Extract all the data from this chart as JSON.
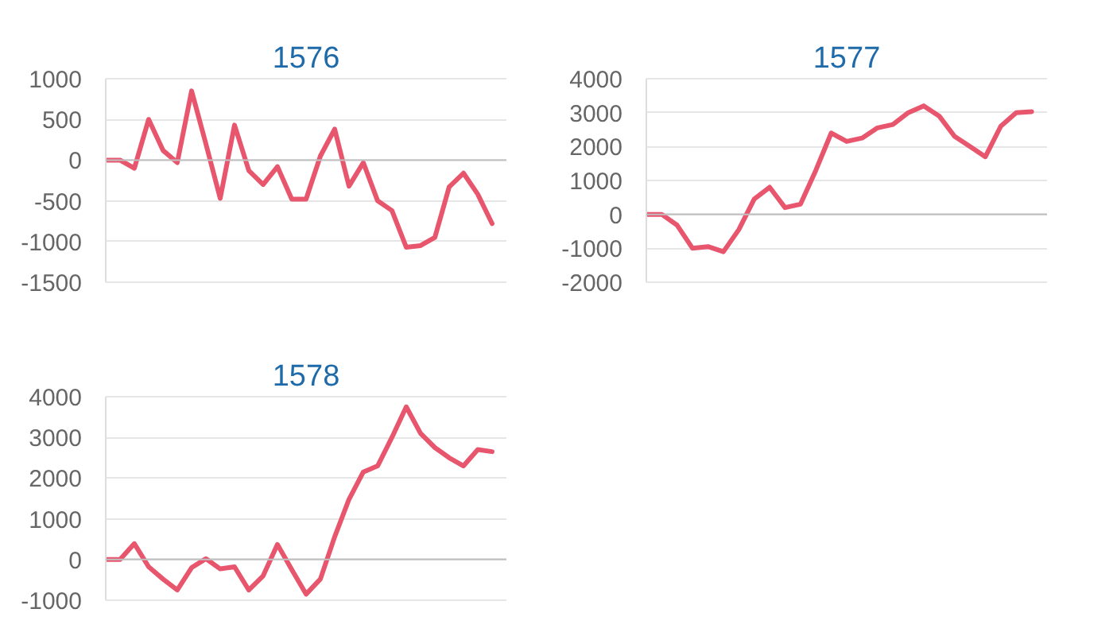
{
  "chart_data": [
    {
      "type": "line",
      "title": "1576",
      "categories": [
        null,
        null,
        null,
        null,
        null,
        null,
        null,
        null,
        null,
        null,
        null,
        null,
        null,
        null,
        null,
        null,
        null,
        null,
        null,
        null,
        null,
        null,
        null,
        null,
        null,
        null,
        null,
        null
      ],
      "series": [
        {
          "color": "#e8566e",
          "values": [
            0,
            0,
            -100,
            500,
            120,
            -30,
            850,
            200,
            -470,
            430,
            -130,
            -300,
            -80,
            -480,
            -480,
            50,
            380,
            -320,
            -30,
            -500,
            -620,
            -1070,
            -1050,
            -950,
            -330,
            -160,
            -420,
            -780
          ]
        }
      ],
      "ylim": [
        -1500,
        1000
      ],
      "yticks": [
        -1500,
        -1000,
        -500,
        0,
        500,
        1000
      ],
      "grid": "y",
      "tick_labels": "y",
      "marker": "none",
      "line_style": "solid",
      "ref_lines": [
        {
          "axis": "y",
          "value": 0,
          "color": "#bfbfbf"
        }
      ]
    },
    {
      "type": "line",
      "title": "1577",
      "categories": [
        null,
        null,
        null,
        null,
        null,
        null,
        null,
        null,
        null,
        null,
        null,
        null,
        null,
        null,
        null,
        null,
        null,
        null,
        null,
        null,
        null,
        null,
        null,
        null,
        null,
        null
      ],
      "series": [
        {
          "color": "#e8566e",
          "values": [
            0,
            0,
            -320,
            -1000,
            -950,
            -1100,
            -450,
            450,
            800,
            200,
            300,
            1300,
            2400,
            2150,
            2250,
            2550,
            2650,
            3000,
            3200,
            2900,
            2300,
            2000,
            1700,
            2600,
            3000,
            3030
          ]
        }
      ],
      "ylim": [
        -2000,
        4000
      ],
      "yticks": [
        -2000,
        -1000,
        0,
        1000,
        2000,
        3000,
        4000
      ],
      "grid": "y",
      "tick_labels": "y",
      "marker": "none",
      "line_style": "solid",
      "ref_lines": [
        {
          "axis": "y",
          "value": 0,
          "color": "#bfbfbf"
        }
      ]
    },
    {
      "type": "line",
      "title": "1578",
      "categories": [
        null,
        null,
        null,
        null,
        null,
        null,
        null,
        null,
        null,
        null,
        null,
        null,
        null,
        null,
        null,
        null,
        null,
        null,
        null,
        null,
        null,
        null,
        null,
        null,
        null,
        null,
        null,
        null
      ],
      "series": [
        {
          "color": "#e8566e",
          "values": [
            0,
            0,
            390,
            -180,
            -480,
            -750,
            -200,
            20,
            -230,
            -180,
            -750,
            -400,
            370,
            -250,
            -850,
            -480,
            560,
            1480,
            2150,
            2300,
            3000,
            3750,
            3100,
            2750,
            2500,
            2300,
            2700,
            2650
          ]
        }
      ],
      "ylim": [
        -1000,
        4000
      ],
      "yticks": [
        -1000,
        0,
        1000,
        2000,
        3000,
        4000
      ],
      "grid": "y",
      "tick_labels": "y",
      "marker": "none",
      "line_style": "solid",
      "ref_lines": [
        {
          "axis": "y",
          "value": 0,
          "color": "#bfbfbf"
        }
      ]
    }
  ]
}
